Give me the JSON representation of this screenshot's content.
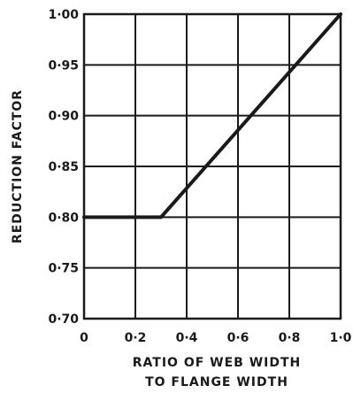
{
  "chart_data": {
    "type": "line",
    "title": "",
    "xlabel_lines": [
      "RATIO OF WEB WIDTH",
      "TO FLANGE WIDTH"
    ],
    "ylabel": "REDUCTION FACTOR",
    "xlim": [
      0,
      1.0
    ],
    "ylim": [
      0.7,
      1.0
    ],
    "grid": true,
    "x_ticks": [
      {
        "value": 0,
        "label": "0"
      },
      {
        "value": 0.2,
        "label": "0·2"
      },
      {
        "value": 0.4,
        "label": "0·4"
      },
      {
        "value": 0.6,
        "label": "0·6"
      },
      {
        "value": 0.8,
        "label": "0·8"
      },
      {
        "value": 1.0,
        "label": "1·0"
      }
    ],
    "y_ticks": [
      {
        "value": 0.7,
        "label": "0·70"
      },
      {
        "value": 0.75,
        "label": "0·75"
      },
      {
        "value": 0.8,
        "label": "0·80"
      },
      {
        "value": 0.85,
        "label": "0·85"
      },
      {
        "value": 0.9,
        "label": "0·90"
      },
      {
        "value": 0.95,
        "label": "0·95"
      },
      {
        "value": 1.0,
        "label": "1·00"
      }
    ],
    "series": [
      {
        "x": [
          0,
          0.3,
          1.0
        ],
        "y": [
          0.8,
          0.8,
          1.0
        ]
      }
    ],
    "colors": {
      "ink": "#1a1a1a",
      "paper": "#ffffff"
    }
  }
}
